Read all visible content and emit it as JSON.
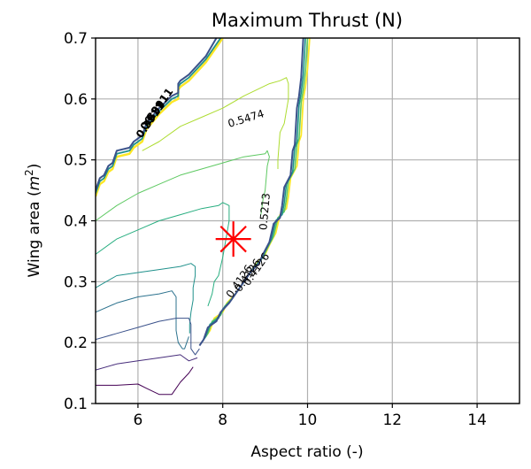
{
  "chart_data": {
    "type": "contour",
    "title": "Maximum Thrust (N)",
    "xlabel": "Aspect ratio (-)",
    "ylabel_main": "Wing area (",
    "ylabel_unit_base": "m",
    "ylabel_unit_exp": "2",
    "ylabel_close": ")",
    "xlim": [
      5,
      15
    ],
    "ylim": [
      0.1,
      0.7
    ],
    "xticks": [
      6,
      8,
      10,
      12,
      14
    ],
    "xtick_labels": [
      "6",
      "8",
      "10",
      "12",
      "14"
    ],
    "yticks": [
      0.1,
      0.2,
      0.3,
      0.4,
      0.5,
      0.6,
      0.7
    ],
    "ytick_labels": [
      "0.1",
      "0.2",
      "0.3",
      "0.4",
      "0.5",
      "0.6",
      "0.7"
    ],
    "grid": true,
    "colormap": "viridis",
    "colors": {
      "dark_purple": "#440154",
      "indigo": "#3b528b",
      "teal_blue": "#2c728e",
      "teal": "#21918c",
      "green_teal": "#28ae80",
      "green": "#5ec962",
      "yellow_green": "#addc30",
      "yellow": "#fde725",
      "marker": "#ff0000"
    },
    "optimum_marker": {
      "x": 8.25,
      "y": 0.37,
      "symbol": "asterisk"
    },
    "contour_labels": [
      {
        "text": "0.5474",
        "x": 8.55,
        "y": 0.567,
        "rotation": -17
      },
      {
        "text": "0.5213",
        "x": 9.0,
        "y": 0.415,
        "rotation": -85
      }
    ],
    "clustered_labels_top": [
      "0.3911",
      "0.3911",
      "0.3911"
    ],
    "clustered_labels_bottom": [
      "0.4126",
      "0.4126",
      "0.4126"
    ],
    "contours": [
      {
        "level": "boundary-0",
        "color": "#fde725",
        "width": 2.4,
        "points": [
          [
            5,
            0.44
          ],
          [
            5.1,
            0.46
          ],
          [
            5.2,
            0.465
          ],
          [
            5.3,
            0.48
          ],
          [
            5.4,
            0.485
          ],
          [
            5.5,
            0.505
          ],
          [
            5.8,
            0.51
          ],
          [
            5.9,
            0.52
          ],
          [
            6.1,
            0.53
          ],
          [
            6.2,
            0.55
          ],
          [
            6.5,
            0.575
          ],
          [
            6.8,
            0.595
          ],
          [
            6.95,
            0.6
          ],
          [
            6.95,
            0.615
          ],
          [
            7.0,
            0.62
          ],
          [
            7.2,
            0.63
          ],
          [
            7.6,
            0.66
          ],
          [
            7.9,
            0.69
          ],
          [
            8.0,
            0.7
          ]
        ]
      },
      {
        "level": "boundary-1",
        "color": "#21918c",
        "width": 1.8,
        "points": [
          [
            5,
            0.445
          ],
          [
            5.1,
            0.465
          ],
          [
            5.2,
            0.47
          ],
          [
            5.3,
            0.485
          ],
          [
            5.4,
            0.49
          ],
          [
            5.5,
            0.51
          ],
          [
            5.8,
            0.515
          ],
          [
            5.9,
            0.525
          ],
          [
            6.1,
            0.535
          ],
          [
            6.2,
            0.555
          ],
          [
            6.5,
            0.58
          ],
          [
            6.8,
            0.6
          ],
          [
            6.95,
            0.605
          ],
          [
            6.95,
            0.62
          ],
          [
            7.0,
            0.625
          ],
          [
            7.2,
            0.635
          ],
          [
            7.6,
            0.665
          ],
          [
            7.9,
            0.695
          ],
          [
            7.95,
            0.7
          ]
        ]
      },
      {
        "level": "boundary-2",
        "color": "#3b528b",
        "width": 2.0,
        "points": [
          [
            5,
            0.45
          ],
          [
            5.1,
            0.47
          ],
          [
            5.2,
            0.475
          ],
          [
            5.3,
            0.49
          ],
          [
            5.4,
            0.495
          ],
          [
            5.5,
            0.515
          ],
          [
            5.8,
            0.52
          ],
          [
            5.9,
            0.53
          ],
          [
            6.1,
            0.54
          ],
          [
            6.2,
            0.56
          ],
          [
            6.5,
            0.585
          ],
          [
            6.8,
            0.605
          ],
          [
            6.95,
            0.61
          ],
          [
            6.95,
            0.625
          ],
          [
            7.0,
            0.63
          ],
          [
            7.2,
            0.64
          ],
          [
            7.6,
            0.67
          ],
          [
            7.85,
            0.7
          ]
        ]
      },
      {
        "level": "right-boundary-yellow",
        "color": "#fde725",
        "width": 1.8,
        "points": [
          [
            7.6,
            0.21
          ],
          [
            7.7,
            0.22
          ],
          [
            7.8,
            0.24
          ],
          [
            8.0,
            0.25
          ],
          [
            8.1,
            0.265
          ],
          [
            8.3,
            0.28
          ],
          [
            8.5,
            0.3
          ],
          [
            8.7,
            0.32
          ],
          [
            8.8,
            0.33
          ],
          [
            9.0,
            0.345
          ],
          [
            9.1,
            0.36
          ],
          [
            9.25,
            0.38
          ],
          [
            9.35,
            0.41
          ],
          [
            9.5,
            0.42
          ],
          [
            9.55,
            0.44
          ],
          [
            9.6,
            0.47
          ],
          [
            9.75,
            0.49
          ],
          [
            9.8,
            0.53
          ],
          [
            9.85,
            0.54
          ],
          [
            9.9,
            0.6
          ],
          [
            9.95,
            0.62
          ],
          [
            10.0,
            0.65
          ],
          [
            10.05,
            0.7
          ]
        ]
      },
      {
        "level": "right-boundary-green",
        "color": "#5ec962",
        "width": 1.6,
        "points": [
          [
            7.55,
            0.205
          ],
          [
            7.65,
            0.215
          ],
          [
            7.75,
            0.235
          ],
          [
            7.95,
            0.245
          ],
          [
            8.05,
            0.26
          ],
          [
            8.25,
            0.275
          ],
          [
            8.45,
            0.295
          ],
          [
            8.65,
            0.315
          ],
          [
            8.75,
            0.325
          ],
          [
            8.95,
            0.34
          ],
          [
            9.05,
            0.355
          ],
          [
            9.2,
            0.375
          ],
          [
            9.3,
            0.405
          ],
          [
            9.45,
            0.415
          ],
          [
            9.5,
            0.435
          ],
          [
            9.55,
            0.465
          ],
          [
            9.7,
            0.485
          ],
          [
            9.75,
            0.525
          ],
          [
            9.8,
            0.535
          ],
          [
            9.85,
            0.595
          ],
          [
            9.9,
            0.615
          ],
          [
            9.95,
            0.645
          ],
          [
            10.0,
            0.7
          ]
        ]
      },
      {
        "level": "right-boundary-teal",
        "color": "#21918c",
        "width": 1.6,
        "points": [
          [
            7.5,
            0.2
          ],
          [
            7.6,
            0.21
          ],
          [
            7.7,
            0.23
          ],
          [
            7.9,
            0.24
          ],
          [
            8.0,
            0.255
          ],
          [
            8.2,
            0.27
          ],
          [
            8.4,
            0.29
          ],
          [
            8.6,
            0.31
          ],
          [
            8.7,
            0.32
          ],
          [
            8.9,
            0.335
          ],
          [
            9.0,
            0.35
          ],
          [
            9.15,
            0.37
          ],
          [
            9.25,
            0.4
          ],
          [
            9.4,
            0.41
          ],
          [
            9.45,
            0.43
          ],
          [
            9.5,
            0.46
          ],
          [
            9.65,
            0.48
          ],
          [
            9.7,
            0.52
          ],
          [
            9.75,
            0.53
          ],
          [
            9.8,
            0.59
          ],
          [
            9.85,
            0.61
          ],
          [
            9.9,
            0.64
          ],
          [
            9.95,
            0.7
          ]
        ]
      },
      {
        "level": "right-boundary-navy",
        "color": "#3b528b",
        "width": 2.0,
        "points": [
          [
            7.45,
            0.195
          ],
          [
            7.55,
            0.205
          ],
          [
            7.65,
            0.225
          ],
          [
            7.85,
            0.235
          ],
          [
            7.95,
            0.25
          ],
          [
            8.15,
            0.265
          ],
          [
            8.35,
            0.285
          ],
          [
            8.55,
            0.305
          ],
          [
            8.65,
            0.315
          ],
          [
            8.85,
            0.33
          ],
          [
            8.95,
            0.345
          ],
          [
            9.1,
            0.365
          ],
          [
            9.2,
            0.395
          ],
          [
            9.35,
            0.405
          ],
          [
            9.4,
            0.425
          ],
          [
            9.45,
            0.455
          ],
          [
            9.6,
            0.475
          ],
          [
            9.65,
            0.515
          ],
          [
            9.7,
            0.525
          ],
          [
            9.75,
            0.585
          ],
          [
            9.8,
            0.605
          ],
          [
            9.85,
            0.635
          ],
          [
            9.9,
            0.7
          ]
        ]
      },
      {
        "level": "inner-yellow",
        "color": "#addc30",
        "width": 1.0,
        "points": [
          [
            6.1,
            0.515
          ],
          [
            6.5,
            0.53
          ],
          [
            7.0,
            0.555
          ],
          [
            7.5,
            0.57
          ],
          [
            8.0,
            0.585
          ],
          [
            8.5,
            0.605
          ],
          [
            9.1,
            0.625
          ],
          [
            9.35,
            0.63
          ],
          [
            9.5,
            0.635
          ],
          [
            9.55,
            0.625
          ],
          [
            9.55,
            0.6
          ],
          [
            9.45,
            0.56
          ],
          [
            9.35,
            0.545
          ],
          [
            9.3,
            0.5
          ],
          [
            9.3,
            0.485
          ]
        ]
      },
      {
        "level": "inner-green-1",
        "color": "#5ec962",
        "width": 1.0,
        "points": [
          [
            5,
            0.4
          ],
          [
            5.5,
            0.425
          ],
          [
            6.0,
            0.445
          ],
          [
            6.5,
            0.46
          ],
          [
            7.0,
            0.475
          ],
          [
            7.5,
            0.485
          ],
          [
            8.0,
            0.495
          ],
          [
            8.5,
            0.505
          ],
          [
            9.0,
            0.51
          ],
          [
            9.05,
            0.515
          ],
          [
            9.1,
            0.505
          ],
          [
            9.05,
            0.49
          ],
          [
            9.0,
            0.45
          ],
          [
            8.95,
            0.435
          ],
          [
            8.9,
            0.41
          ]
        ]
      },
      {
        "level": "inner-green-2",
        "color": "#28ae80",
        "width": 1.0,
        "points": [
          [
            5,
            0.345
          ],
          [
            5.5,
            0.37
          ],
          [
            6.0,
            0.385
          ],
          [
            6.5,
            0.4
          ],
          [
            7.0,
            0.41
          ],
          [
            7.5,
            0.42
          ],
          [
            7.9,
            0.425
          ],
          [
            8.0,
            0.43
          ],
          [
            8.15,
            0.425
          ],
          [
            8.15,
            0.4
          ],
          [
            8.1,
            0.38
          ],
          [
            8.05,
            0.36
          ],
          [
            8.0,
            0.34
          ],
          [
            7.9,
            0.31
          ],
          [
            7.8,
            0.3
          ],
          [
            7.75,
            0.28
          ],
          [
            7.7,
            0.27
          ],
          [
            7.65,
            0.26
          ]
        ]
      },
      {
        "level": "inner-teal",
        "color": "#21918c",
        "width": 1.0,
        "points": [
          [
            5,
            0.29
          ],
          [
            5.5,
            0.31
          ],
          [
            6.0,
            0.315
          ],
          [
            6.5,
            0.32
          ],
          [
            7.0,
            0.325
          ],
          [
            7.25,
            0.33
          ],
          [
            7.35,
            0.325
          ],
          [
            7.35,
            0.31
          ],
          [
            7.3,
            0.29
          ],
          [
            7.3,
            0.27
          ],
          [
            7.25,
            0.25
          ],
          [
            7.22,
            0.23
          ],
          [
            7.22,
            0.215
          ]
        ]
      },
      {
        "level": "inner-tealblue",
        "color": "#2c728e",
        "width": 1.0,
        "points": [
          [
            5,
            0.25
          ],
          [
            5.5,
            0.265
          ],
          [
            6.0,
            0.275
          ],
          [
            6.5,
            0.28
          ],
          [
            6.8,
            0.285
          ],
          [
            6.9,
            0.275
          ],
          [
            6.9,
            0.25
          ],
          [
            6.9,
            0.22
          ],
          [
            6.95,
            0.2
          ],
          [
            7.05,
            0.19
          ],
          [
            7.1,
            0.19
          ],
          [
            7.15,
            0.2
          ],
          [
            7.2,
            0.21
          ]
        ]
      },
      {
        "level": "inner-indigo",
        "color": "#3b528b",
        "width": 1.0,
        "points": [
          [
            5,
            0.205
          ],
          [
            5.5,
            0.215
          ],
          [
            6.0,
            0.225
          ],
          [
            6.5,
            0.235
          ],
          [
            6.9,
            0.24
          ],
          [
            7.2,
            0.24
          ],
          [
            7.25,
            0.23
          ],
          [
            7.25,
            0.2
          ],
          [
            7.25,
            0.19
          ],
          [
            7.35,
            0.18
          ],
          [
            7.45,
            0.19
          ]
        ]
      },
      {
        "level": "inner-purple-1",
        "color": "#472d7b",
        "width": 1.0,
        "points": [
          [
            5,
            0.155
          ],
          [
            5.5,
            0.165
          ],
          [
            6.0,
            0.17
          ],
          [
            6.5,
            0.175
          ],
          [
            7.0,
            0.18
          ],
          [
            7.1,
            0.175
          ],
          [
            7.2,
            0.17
          ],
          [
            7.4,
            0.175
          ]
        ]
      },
      {
        "level": "inner-purple-2",
        "color": "#440154",
        "width": 1.0,
        "points": [
          [
            5,
            0.13
          ],
          [
            5.5,
            0.13
          ],
          [
            6.0,
            0.132
          ],
          [
            6.2,
            0.125
          ],
          [
            6.5,
            0.115
          ],
          [
            6.8,
            0.115
          ],
          [
            6.9,
            0.125
          ],
          [
            7.0,
            0.135
          ],
          [
            7.2,
            0.15
          ],
          [
            7.3,
            0.16
          ]
        ]
      }
    ]
  }
}
